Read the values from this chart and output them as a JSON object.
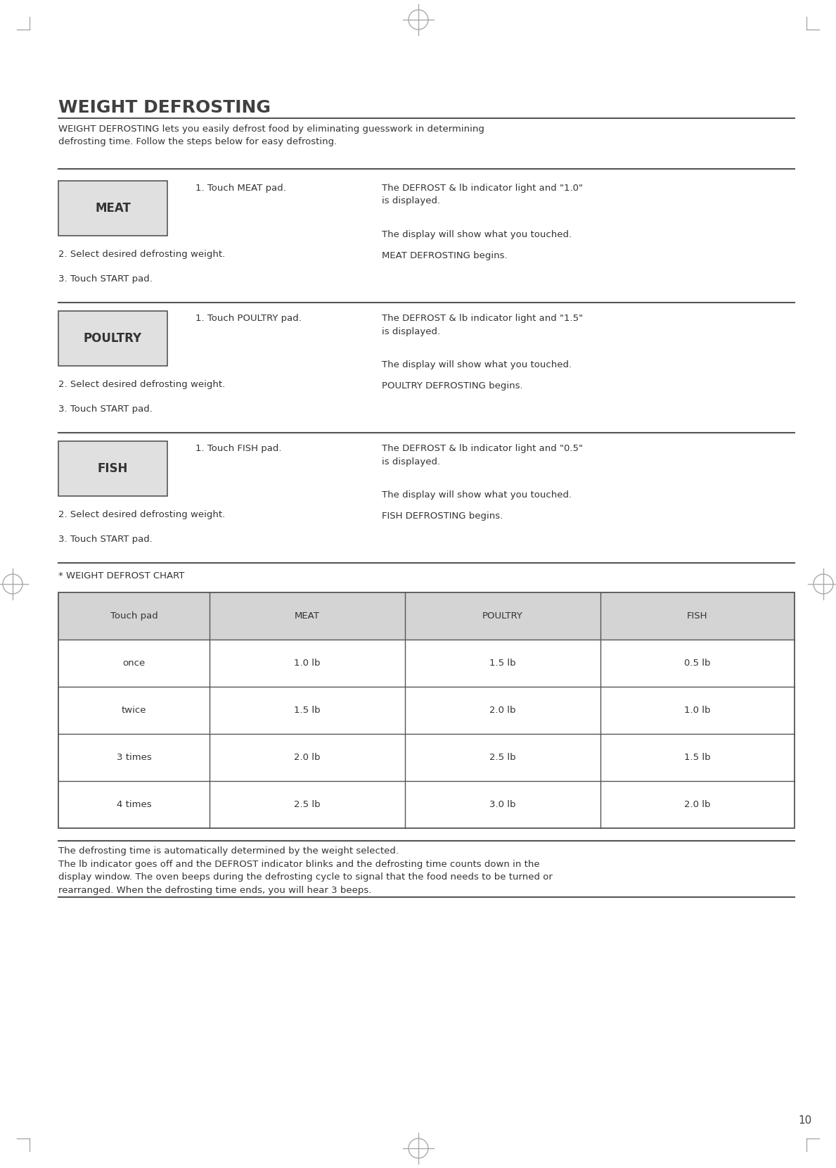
{
  "title": "WEIGHT DEFROSTING",
  "intro": "WEIGHT DEFROSTING lets you easily defrost food by eliminating guesswork in determining\ndefrosting time. Follow the steps below for easy defrosting.",
  "page_number": "10",
  "sections": [
    {
      "label": "MEAT",
      "step1": "1. Touch MEAT pad.",
      "step2": "2. Select desired defrosting weight.",
      "step3": "3. Touch START pad.",
      "right1": "The DEFROST & lb indicator light and \"1.0\"\nis displayed.",
      "right2": "The display will show what you touched.",
      "right3": "MEAT DEFROSTING begins."
    },
    {
      "label": "POULTRY",
      "step1": "1. Touch POULTRY pad.",
      "step2": "2. Select desired defrosting weight.",
      "step3": "3. Touch START pad.",
      "right1": "The DEFROST & lb indicator light and \"1.5\"\nis displayed.",
      "right2": "The display will show what you touched.",
      "right3": "POULTRY DEFROSTING begins."
    },
    {
      "label": "FISH",
      "step1": "1. Touch FISH pad.",
      "step2": "2. Select desired defrosting weight.",
      "step3": "3. Touch START pad.",
      "right1": "The DEFROST & lb indicator light and \"0.5\"\nis displayed.",
      "right2": "The display will show what you touched.",
      "right3": "FISH DEFROSTING begins."
    }
  ],
  "chart_label": "* WEIGHT DEFROST CHART",
  "table_headers": [
    "Touch pad",
    "MEAT",
    "POULTRY",
    "FISH"
  ],
  "table_rows": [
    [
      "once",
      "1.0 lb",
      "1.5 lb",
      "0.5 lb"
    ],
    [
      "twice",
      "1.5 lb",
      "2.0 lb",
      "1.0 lb"
    ],
    [
      "3 times",
      "2.0 lb",
      "2.5 lb",
      "1.5 lb"
    ],
    [
      "4 times",
      "2.5 lb",
      "3.0 lb",
      "2.0 lb"
    ]
  ],
  "footer_line1": "The defrosting time is automatically determined by the weight selected.",
  "footer_line2": "The lb indicator goes off and the DEFROST indicator blinks and the defrosting time counts down in the",
  "footer_line3": "display window. The oven beeps during the defrosting cycle to signal that the food needs to be turned or",
  "footer_line4": "rearranged. When the defrosting time ends, you will hear 3 beeps.",
  "bg_color": "#ffffff",
  "text_color": "#333333",
  "box_bg": "#e0e0e0",
  "box_border": "#555555",
  "table_header_bg": "#d4d4d4",
  "table_line_color": "#555555",
  "title_color": "#404040",
  "line_color": "#555555"
}
